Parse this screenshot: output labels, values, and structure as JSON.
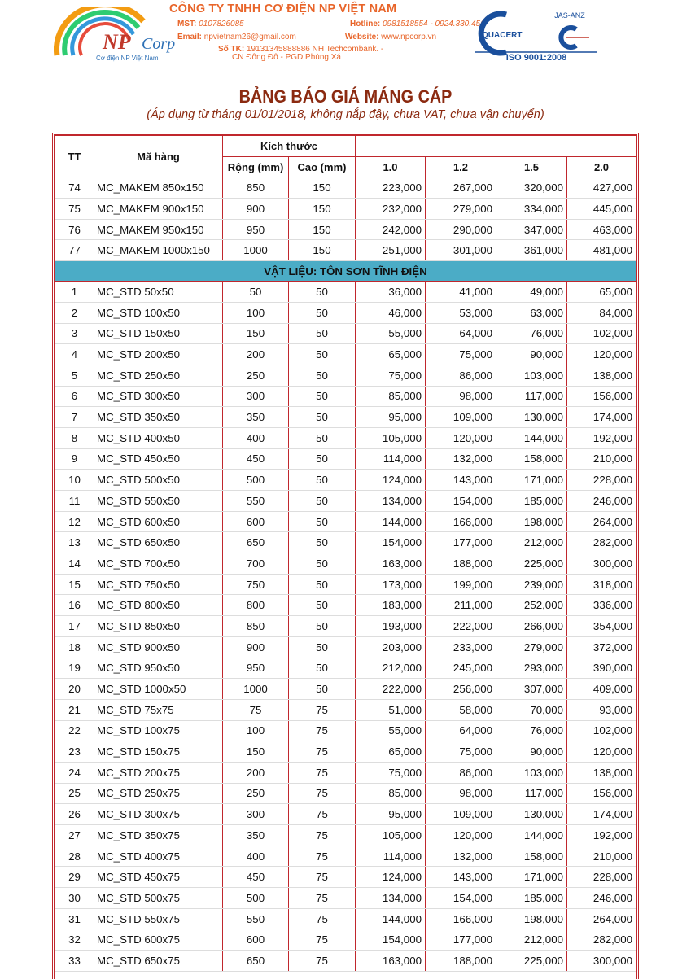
{
  "header": {
    "company": "CÔNG TY TNHH CƠ ĐIỆN NP VIỆT NAM",
    "mst_label": "MST:",
    "mst": "0107826085",
    "hotline_label": "Hotline:",
    "hotline": "0981518554 - 0924.330.456",
    "email_label": "Email:",
    "email": "npvietnam26@gmail.com",
    "website_label": "Website:",
    "website": "www.npcorp.vn",
    "account_label": "Số TK:",
    "account": "19131345888886 NH Techcombank. -",
    "branch": "CN Đông Đô - PGD Phùng Xá",
    "logo_text": "NPCorp",
    "logo_tagline": "Cơ điện NP Việt Nam",
    "cert_text": "QUACERT",
    "cert_jas": "JAS-ANZ",
    "cert_iso": "ISO 9001:2008",
    "colors": {
      "brand": "#e8652a",
      "title": "#8b2a10",
      "border": "#c0272d",
      "section": "#4bacc6"
    }
  },
  "title": "BẢNG BÁO GIÁ MÁNG CÁP",
  "subtitle": "(Áp dụng từ tháng 01/01/2018, không nắp đậy, chưa VAT, chưa vận chuyển)",
  "table": {
    "headers": {
      "tt": "TT",
      "code": "Mã hàng",
      "size": "Kích thước",
      "width": "Rộng (mm)",
      "height": "Cao (mm)",
      "thickness": [
        "1.0",
        "1.2",
        "1.5",
        "2.0"
      ]
    },
    "rows_top": [
      [
        "74",
        "MC_MAKEM 850x150",
        "850",
        "150",
        "223,000",
        "267,000",
        "320,000",
        "427,000"
      ],
      [
        "75",
        "MC_MAKEM 900x150",
        "900",
        "150",
        "232,000",
        "279,000",
        "334,000",
        "445,000"
      ],
      [
        "76",
        "MC_MAKEM 950x150",
        "950",
        "150",
        "242,000",
        "290,000",
        "347,000",
        "463,000"
      ],
      [
        "77",
        "MC_MAKEM 1000x150",
        "1000",
        "150",
        "251,000",
        "301,000",
        "361,000",
        "481,000"
      ]
    ],
    "section": "VẬT LIỆU: TÔN SƠN TĨNH ĐIỆN",
    "rows": [
      [
        "1",
        "MC_STD 50x50",
        "50",
        "50",
        "36,000",
        "41,000",
        "49,000",
        "65,000"
      ],
      [
        "2",
        "MC_STD 100x50",
        "100",
        "50",
        "46,000",
        "53,000",
        "63,000",
        "84,000"
      ],
      [
        "3",
        "MC_STD 150x50",
        "150",
        "50",
        "55,000",
        "64,000",
        "76,000",
        "102,000"
      ],
      [
        "4",
        "MC_STD 200x50",
        "200",
        "50",
        "65,000",
        "75,000",
        "90,000",
        "120,000"
      ],
      [
        "5",
        "MC_STD 250x50",
        "250",
        "50",
        "75,000",
        "86,000",
        "103,000",
        "138,000"
      ],
      [
        "6",
        "MC_STD 300x50",
        "300",
        "50",
        "85,000",
        "98,000",
        "117,000",
        "156,000"
      ],
      [
        "7",
        "MC_STD 350x50",
        "350",
        "50",
        "95,000",
        "109,000",
        "130,000",
        "174,000"
      ],
      [
        "8",
        "MC_STD 400x50",
        "400",
        "50",
        "105,000",
        "120,000",
        "144,000",
        "192,000"
      ],
      [
        "9",
        "MC_STD 450x50",
        "450",
        "50",
        "114,000",
        "132,000",
        "158,000",
        "210,000"
      ],
      [
        "10",
        "MC_STD 500x50",
        "500",
        "50",
        "124,000",
        "143,000",
        "171,000",
        "228,000"
      ],
      [
        "11",
        "MC_STD 550x50",
        "550",
        "50",
        "134,000",
        "154,000",
        "185,000",
        "246,000"
      ],
      [
        "12",
        "MC_STD 600x50",
        "600",
        "50",
        "144,000",
        "166,000",
        "198,000",
        "264,000"
      ],
      [
        "13",
        "MC_STD 650x50",
        "650",
        "50",
        "154,000",
        "177,000",
        "212,000",
        "282,000"
      ],
      [
        "14",
        "MC_STD 700x50",
        "700",
        "50",
        "163,000",
        "188,000",
        "225,000",
        "300,000"
      ],
      [
        "15",
        "MC_STD 750x50",
        "750",
        "50",
        "173,000",
        "199,000",
        "239,000",
        "318,000"
      ],
      [
        "16",
        "MC_STD 800x50",
        "800",
        "50",
        "183,000",
        "211,000",
        "252,000",
        "336,000"
      ],
      [
        "17",
        "MC_STD 850x50",
        "850",
        "50",
        "193,000",
        "222,000",
        "266,000",
        "354,000"
      ],
      [
        "18",
        "MC_STD 900x50",
        "900",
        "50",
        "203,000",
        "233,000",
        "279,000",
        "372,000"
      ],
      [
        "19",
        "MC_STD 950x50",
        "950",
        "50",
        "212,000",
        "245,000",
        "293,000",
        "390,000"
      ],
      [
        "20",
        "MC_STD 1000x50",
        "1000",
        "50",
        "222,000",
        "256,000",
        "307,000",
        "409,000"
      ],
      [
        "21",
        "MC_STD 75x75",
        "75",
        "75",
        "51,000",
        "58,000",
        "70,000",
        "93,000"
      ],
      [
        "22",
        "MC_STD 100x75",
        "100",
        "75",
        "55,000",
        "64,000",
        "76,000",
        "102,000"
      ],
      [
        "23",
        "MC_STD 150x75",
        "150",
        "75",
        "65,000",
        "75,000",
        "90,000",
        "120,000"
      ],
      [
        "24",
        "MC_STD 200x75",
        "200",
        "75",
        "75,000",
        "86,000",
        "103,000",
        "138,000"
      ],
      [
        "25",
        "MC_STD 250x75",
        "250",
        "75",
        "85,000",
        "98,000",
        "117,000",
        "156,000"
      ],
      [
        "26",
        "MC_STD 300x75",
        "300",
        "75",
        "95,000",
        "109,000",
        "130,000",
        "174,000"
      ],
      [
        "27",
        "MC_STD 350x75",
        "350",
        "75",
        "105,000",
        "120,000",
        "144,000",
        "192,000"
      ],
      [
        "28",
        "MC_STD 400x75",
        "400",
        "75",
        "114,000",
        "132,000",
        "158,000",
        "210,000"
      ],
      [
        "29",
        "MC_STD 450x75",
        "450",
        "75",
        "124,000",
        "143,000",
        "171,000",
        "228,000"
      ],
      [
        "30",
        "MC_STD 500x75",
        "500",
        "75",
        "134,000",
        "154,000",
        "185,000",
        "246,000"
      ],
      [
        "31",
        "MC_STD 550x75",
        "550",
        "75",
        "144,000",
        "166,000",
        "198,000",
        "264,000"
      ],
      [
        "32",
        "MC_STD 600x75",
        "600",
        "75",
        "154,000",
        "177,000",
        "212,000",
        "282,000"
      ],
      [
        "33",
        "MC_STD 650x75",
        "650",
        "75",
        "163,000",
        "188,000",
        "225,000",
        "300,000"
      ]
    ]
  }
}
